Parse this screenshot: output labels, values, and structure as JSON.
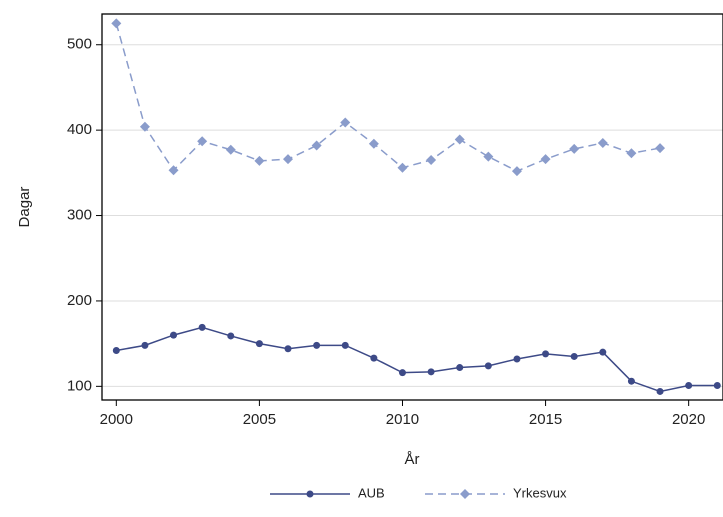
{
  "chart_data": {
    "type": "line",
    "x_label": "År",
    "y_label": "Dagar",
    "x": [
      2000,
      2001,
      2002,
      2003,
      2004,
      2005,
      2006,
      2007,
      2008,
      2009,
      2010,
      2011,
      2012,
      2013,
      2014,
      2015,
      2016,
      2017,
      2018,
      2019,
      2020,
      2021
    ],
    "series": [
      {
        "name": "AUB",
        "color": "#3d4a87",
        "dashed": false,
        "marker": "circle",
        "values": [
          142,
          148,
          160,
          169,
          159,
          150,
          144,
          148,
          148,
          133,
          116,
          117,
          122,
          124,
          132,
          138,
          135,
          140,
          106,
          94,
          101,
          101
        ]
      },
      {
        "name": "Yrkesvux",
        "color": "#8a9ccb",
        "dashed": true,
        "marker": "diamond",
        "values": [
          525,
          404,
          353,
          387,
          377,
          364,
          366,
          382,
          409,
          384,
          356,
          365,
          389,
          369,
          352,
          366,
          378,
          385,
          373,
          379,
          null,
          null
        ]
      }
    ],
    "xlim": [
      1999.5,
      2021.2
    ],
    "xticks": [
      2000,
      2005,
      2010,
      2015,
      2020
    ],
    "ylim": [
      84,
      536
    ],
    "yticks": [
      100,
      200,
      300,
      400,
      500
    ],
    "grid": true,
    "legend": "bottom"
  }
}
